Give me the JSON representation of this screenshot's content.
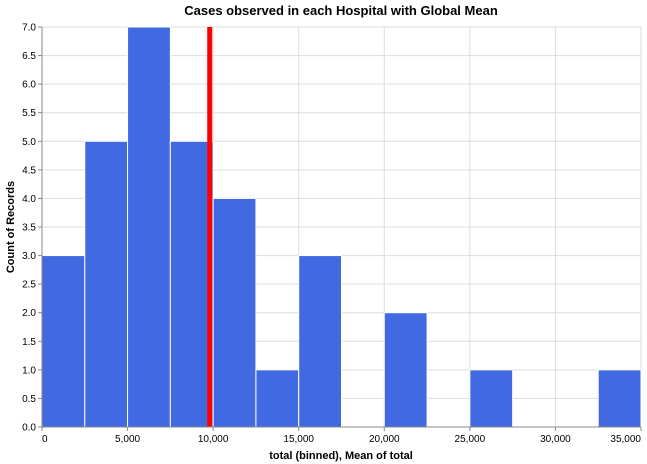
{
  "chart_data": {
    "type": "bar",
    "title": "Cases observed in each Hospital with Global Mean",
    "xlabel": "total (binned), Mean of total",
    "ylabel": "Count of Records",
    "bin_width": 2500,
    "bins": [
      {
        "start": 0,
        "end": 2500,
        "count": 3
      },
      {
        "start": 2500,
        "end": 5000,
        "count": 5
      },
      {
        "start": 5000,
        "end": 7500,
        "count": 7
      },
      {
        "start": 7500,
        "end": 10000,
        "count": 5
      },
      {
        "start": 10000,
        "end": 12500,
        "count": 4
      },
      {
        "start": 12500,
        "end": 15000,
        "count": 1
      },
      {
        "start": 15000,
        "end": 17500,
        "count": 3
      },
      {
        "start": 20000,
        "end": 22500,
        "count": 2
      },
      {
        "start": 25000,
        "end": 27500,
        "count": 1
      },
      {
        "start": 32500,
        "end": 35000,
        "count": 1
      }
    ],
    "mean": 9800,
    "mean_color": "#ff0000",
    "bar_color": "#4169e1",
    "xlim": [
      0,
      35000
    ],
    "ylim": [
      0,
      7
    ],
    "xticks": [
      0,
      5000,
      10000,
      15000,
      20000,
      25000,
      30000,
      35000
    ],
    "xtick_labels": [
      "0",
      "5,000",
      "10,000",
      "15,000",
      "20,000",
      "25,000",
      "30,000",
      "35,000"
    ],
    "yticks": [
      0,
      0.5,
      1,
      1.5,
      2,
      2.5,
      3,
      3.5,
      4,
      4.5,
      5,
      5.5,
      6,
      6.5,
      7
    ],
    "ytick_labels": [
      "0.0",
      "0.5",
      "1.0",
      "1.5",
      "2.0",
      "2.5",
      "3.0",
      "3.5",
      "4.0",
      "4.5",
      "5.0",
      "5.5",
      "6.0",
      "6.5",
      "7.0"
    ],
    "grid": true
  }
}
